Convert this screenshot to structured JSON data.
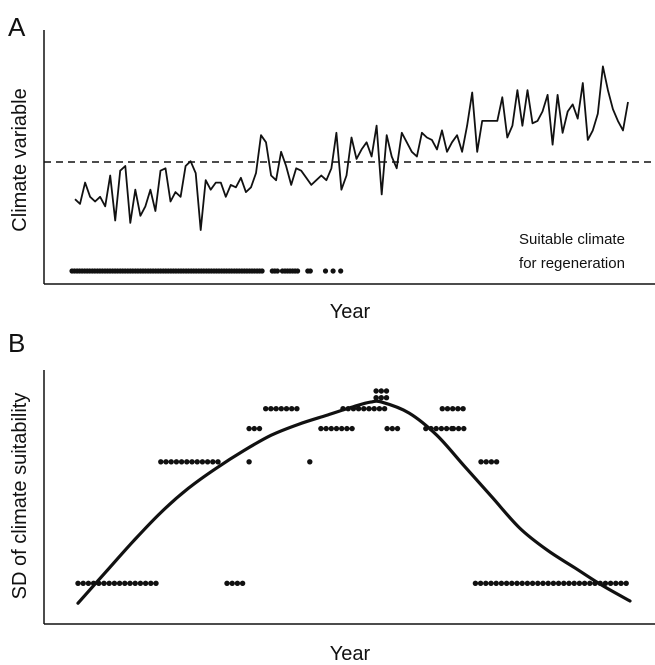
{
  "chart_data": [
    {
      "panel_label": "A",
      "type": "line",
      "xlabel": "Year",
      "ylabel": "Climate variable",
      "threshold_style": "dashed horizontal line",
      "annotation": [
        "Suitable climate",
        "for regeneration"
      ],
      "series": [
        {
          "values": [
            3.2,
            3.0,
            3.9,
            3.3,
            3.1,
            3.3,
            2.9,
            4.2,
            2.3,
            4.4,
            4.6,
            2.2,
            3.6,
            2.5,
            2.9,
            3.6,
            2.7,
            4.4,
            4.5,
            3.1,
            3.5,
            3.3,
            4.6,
            4.8,
            4.3,
            1.9,
            4.0,
            3.6,
            3.9,
            3.9,
            3.3,
            3.8,
            3.7,
            4.1,
            3.5,
            3.7,
            4.3,
            5.9,
            5.6,
            4.2,
            4.0,
            5.2,
            4.6,
            3.8,
            4.5,
            4.4,
            4.1,
            3.8,
            4.0,
            4.2,
            4.0,
            4.5,
            6.0,
            3.6,
            4.2,
            5.8,
            4.9,
            5.3,
            5.6,
            5.0,
            6.3,
            3.4,
            5.9,
            5.0,
            4.5,
            6.0,
            5.6,
            5.2,
            5.0,
            6.0,
            5.8,
            5.7,
            5.3,
            6.1,
            5.2,
            5.6,
            5.9,
            5.2,
            6.3,
            7.7,
            5.2,
            6.5,
            6.5,
            6.5,
            6.5,
            7.5,
            5.8,
            6.3,
            7.8,
            6.3,
            7.8,
            6.4,
            6.5,
            6.9,
            7.6,
            5.5,
            7.6,
            6.0,
            6.9,
            7.2,
            6.6,
            8.1,
            5.7,
            6.1,
            6.8,
            8.8,
            7.8,
            7.0,
            6.5,
            6.1,
            7.3
          ]
        }
      ],
      "suitable_flags": [
        1,
        1,
        1,
        1,
        1,
        1,
        1,
        1,
        1,
        1,
        1,
        1,
        1,
        1,
        1,
        1,
        1,
        1,
        1,
        1,
        1,
        1,
        1,
        1,
        1,
        1,
        1,
        1,
        1,
        1,
        1,
        1,
        1,
        1,
        1,
        1,
        1,
        1,
        1,
        1,
        1,
        1,
        1,
        1,
        1,
        1,
        1,
        1,
        1,
        1,
        1,
        1,
        1,
        1,
        1,
        1,
        1,
        1,
        1,
        1,
        1,
        1,
        1,
        1,
        1,
        1,
        1,
        1,
        1,
        1,
        1,
        1,
        1,
        1,
        1,
        1,
        0,
        0,
        0,
        1,
        1,
        1,
        0,
        1,
        1,
        1,
        1,
        1,
        1,
        1,
        0,
        0,
        0,
        1,
        1,
        0,
        0,
        0,
        0,
        0,
        1,
        0,
        0,
        1,
        0,
        0,
        1,
        0,
        0,
        0,
        0,
        0,
        0,
        0,
        0,
        0,
        0,
        0,
        0,
        0,
        0,
        0,
        0,
        0,
        0,
        0,
        0,
        0,
        0,
        0,
        0,
        0,
        0,
        0,
        0,
        0,
        0,
        0,
        0,
        0,
        0,
        0,
        0
      ],
      "threshold": 5.0,
      "ylim": [
        0,
        10
      ]
    },
    {
      "panel_label": "B",
      "type": "scatter",
      "xlabel": "Year",
      "ylabel": "SD of climate suitability",
      "series": [
        {
          "role": "points",
          "runs": [
            {
              "from": 0.0,
              "to": 0.15,
              "y": 0.13
            },
            {
              "from": 0.27,
              "to": 0.3,
              "y": 0.13
            },
            {
              "from": 0.72,
              "to": 1.0,
              "y": 0.13
            },
            {
              "from": 0.15,
              "to": 0.26,
              "y": 0.68
            },
            {
              "from": 0.31,
              "to": 0.31,
              "y": 0.68
            },
            {
              "from": 0.42,
              "to": 0.42,
              "y": 0.68
            },
            {
              "from": 0.73,
              "to": 0.76,
              "y": 0.68
            },
            {
              "from": 0.31,
              "to": 0.33,
              "y": 0.83
            },
            {
              "from": 0.44,
              "to": 0.5,
              "y": 0.83
            },
            {
              "from": 0.56,
              "to": 0.58,
              "y": 0.83
            },
            {
              "from": 0.63,
              "to": 0.68,
              "y": 0.83
            },
            {
              "from": 0.68,
              "to": 0.7,
              "y": 0.83
            },
            {
              "from": 0.34,
              "to": 0.4,
              "y": 0.92
            },
            {
              "from": 0.48,
              "to": 0.56,
              "y": 0.92
            },
            {
              "from": 0.66,
              "to": 0.7,
              "y": 0.92
            },
            {
              "from": 0.54,
              "to": 0.56,
              "y": 0.97
            },
            {
              "from": 0.54,
              "to": 0.56,
              "y": 1.0
            }
          ]
        },
        {
          "role": "smooth-fit",
          "x": [
            0.0,
            0.05,
            0.1,
            0.15,
            0.2,
            0.25,
            0.3,
            0.35,
            0.4,
            0.45,
            0.5,
            0.53,
            0.55,
            0.6,
            0.65,
            0.7,
            0.75,
            0.8,
            0.85,
            0.9,
            0.95,
            1.0
          ],
          "y": [
            0.04,
            0.18,
            0.32,
            0.45,
            0.56,
            0.65,
            0.73,
            0.8,
            0.85,
            0.89,
            0.93,
            0.95,
            0.95,
            0.9,
            0.8,
            0.66,
            0.52,
            0.38,
            0.28,
            0.2,
            0.12,
            0.05
          ]
        }
      ],
      "ylim": [
        0,
        1.05
      ]
    }
  ]
}
